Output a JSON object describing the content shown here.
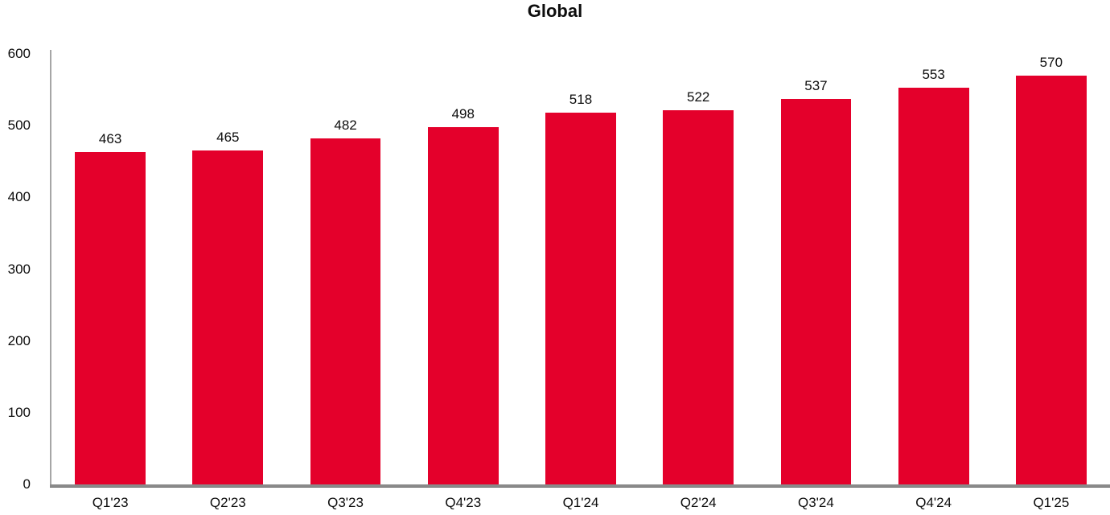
{
  "chart_data": {
    "type": "bar",
    "title": "Global",
    "categories": [
      "Q1'23",
      "Q2'23",
      "Q3'23",
      "Q4'23",
      "Q1'24",
      "Q2'24",
      "Q3'24",
      "Q4'24",
      "Q1'25"
    ],
    "values": [
      463,
      465,
      482,
      498,
      518,
      522,
      537,
      553,
      570
    ],
    "xlabel": "",
    "ylabel": "",
    "ylim": [
      0,
      600
    ],
    "yticks": [
      0,
      100,
      200,
      300,
      400,
      500,
      600
    ],
    "data_labels_shown": true,
    "legend_position": "none",
    "grid": false,
    "bar_color": "#E4002B",
    "y_axis_color": "#A6A6A6",
    "x_axis_color": "#8A8A8A",
    "text_color": "#0d0d0d"
  }
}
